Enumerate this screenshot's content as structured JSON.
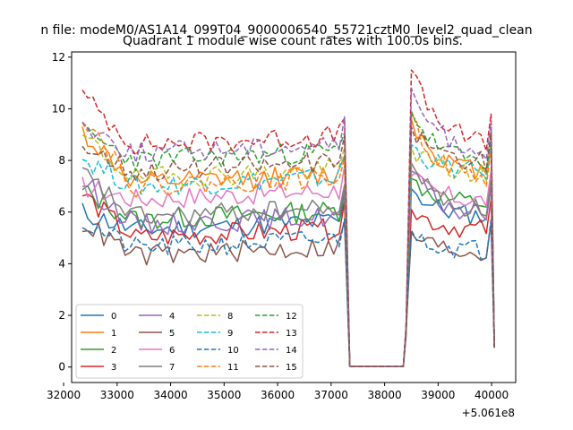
{
  "chart_data": {
    "type": "line",
    "suptitle": "n file: modeM0/AS1A14_099T04_9000006540_55721cztM0_level2_quad_clean",
    "title": "Quadrant 1 module wise count rates with 100.0s bins.",
    "xlabel": "",
    "ylabel": "",
    "x_offset_label": "+5.061e8",
    "xlim": [
      32150,
      40450
    ],
    "ylim": [
      -0.6,
      12.2
    ],
    "x_ticks": [
      32000,
      33000,
      34000,
      35000,
      36000,
      37000,
      38000,
      39000,
      40000
    ],
    "y_ticks": [
      0,
      2,
      4,
      6,
      8,
      10,
      12
    ],
    "grid": false,
    "legend": {
      "placement": "lower-left",
      "columns": 4
    },
    "series": [
      {
        "name": "0",
        "style": "solid",
        "color": "#1f77b4",
        "start": 6.0,
        "plateau": 5.3,
        "end_level": 5.8,
        "peak": 6.9,
        "seed": 11
      },
      {
        "name": "1",
        "style": "solid",
        "color": "#ff7f0e",
        "start": 9.1,
        "plateau": 7.1,
        "end_level": 7.5,
        "peak": 9.6,
        "seed": 12
      },
      {
        "name": "2",
        "style": "solid",
        "color": "#2ca02c",
        "start": 6.8,
        "plateau": 5.7,
        "end_level": 6.3,
        "peak": 7.3,
        "seed": 13
      },
      {
        "name": "3",
        "style": "solid",
        "color": "#d62728",
        "start": 6.7,
        "plateau": 5.0,
        "end_level": 5.3,
        "peak": 6.1,
        "seed": 14
      },
      {
        "name": "4",
        "style": "solid",
        "color": "#9467bd",
        "start": 7.2,
        "plateau": 5.5,
        "end_level": 5.8,
        "peak": 7.6,
        "seed": 15
      },
      {
        "name": "5",
        "style": "solid",
        "color": "#8c564b",
        "start": 5.6,
        "plateau": 4.3,
        "end_level": 4.4,
        "peak": 5.2,
        "seed": 16
      },
      {
        "name": "6",
        "style": "solid",
        "color": "#e377c2",
        "start": 7.0,
        "plateau": 6.5,
        "end_level": 6.4,
        "peak": 7.4,
        "seed": 17
      },
      {
        "name": "7",
        "style": "solid",
        "color": "#7f7f7f",
        "start": 7.5,
        "plateau": 5.8,
        "end_level": 6.0,
        "peak": 7.9,
        "seed": 18
      },
      {
        "name": "8",
        "style": "dashed",
        "color": "#bcbd22",
        "start": 8.9,
        "plateau": 7.3,
        "end_level": 7.4,
        "peak": 8.5,
        "seed": 19
      },
      {
        "name": "9",
        "style": "dashed",
        "color": "#17becf",
        "start": 8.1,
        "plateau": 7.0,
        "end_level": 7.5,
        "peak": 8.6,
        "seed": 20
      },
      {
        "name": "10",
        "style": "dashed",
        "color": "#1f77b4",
        "start": 5.6,
        "plateau": 4.6,
        "end_level": 4.5,
        "peak": 5.3,
        "seed": 21
      },
      {
        "name": "11",
        "style": "dashed",
        "color": "#ff7f0e",
        "start": 9.8,
        "plateau": 7.0,
        "end_level": 7.2,
        "peak": 9.8,
        "seed": 22
      },
      {
        "name": "12",
        "style": "dashed",
        "color": "#2ca02c",
        "start": 9.1,
        "plateau": 8.0,
        "end_level": 7.9,
        "peak": 9.9,
        "seed": 23
      },
      {
        "name": "13",
        "style": "dashed",
        "color": "#d62728",
        "start": 10.5,
        "plateau": 8.6,
        "end_level": 8.6,
        "peak": 11.5,
        "seed": 24
      },
      {
        "name": "14",
        "style": "dashed",
        "color": "#9467bd",
        "start": 9.4,
        "plateau": 8.3,
        "end_level": 8.3,
        "peak": 10.8,
        "seed": 25
      },
      {
        "name": "15",
        "style": "dashed",
        "color": "#8c564b",
        "start": 8.6,
        "plateau": 7.6,
        "end_level": 7.9,
        "peak": 9.3,
        "seed": 26
      }
    ],
    "segments": {
      "first_x_start": 32350,
      "first_x_end": 37250,
      "gap_x_start": 37350,
      "gap_x_end": 38350,
      "second_x_start": 38450,
      "second_x_end": 40050,
      "bin": 100
    }
  }
}
